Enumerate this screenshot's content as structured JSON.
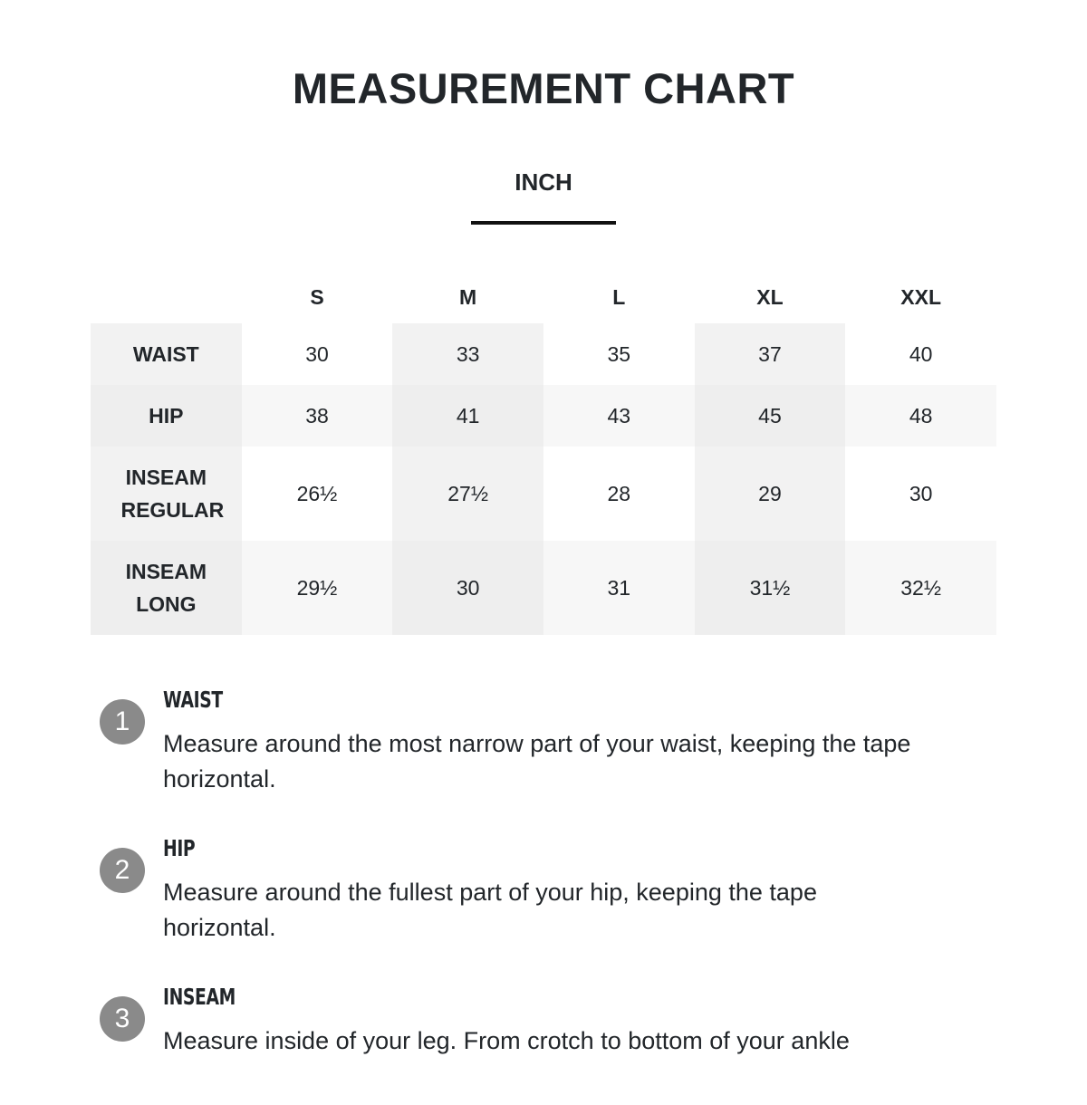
{
  "title": "MEASUREMENT CHART",
  "unit_tab": "INCH",
  "sizes": [
    "S",
    "M",
    "L",
    "XL",
    "XXL"
  ],
  "rows": [
    {
      "label": [
        "WAIST"
      ],
      "values": [
        "30",
        "33",
        "35",
        "37",
        "40"
      ]
    },
    {
      "label": [
        "HIP"
      ],
      "values": [
        "38",
        "41",
        "43",
        "45",
        "48"
      ]
    },
    {
      "label": [
        "INSEAM",
        "REGULAR"
      ],
      "values": [
        "26½",
        "27½",
        "28",
        "29",
        "30"
      ]
    },
    {
      "label": [
        "INSEAM",
        "LONG"
      ],
      "values": [
        "29½",
        "30",
        "31",
        "31½",
        "32½"
      ]
    }
  ],
  "instructions": [
    {
      "number": "1",
      "title": "WAIST",
      "text": "Measure around the most narrow part of your waist, keeping the tape horizontal."
    },
    {
      "number": "2",
      "title": "HIP",
      "text": "Measure around the fullest part of your hip, keeping the tape horizontal."
    },
    {
      "number": "3",
      "title": "INSEAM",
      "text": "Measure inside of your leg. From crotch to bottom of your ankle"
    }
  ]
}
